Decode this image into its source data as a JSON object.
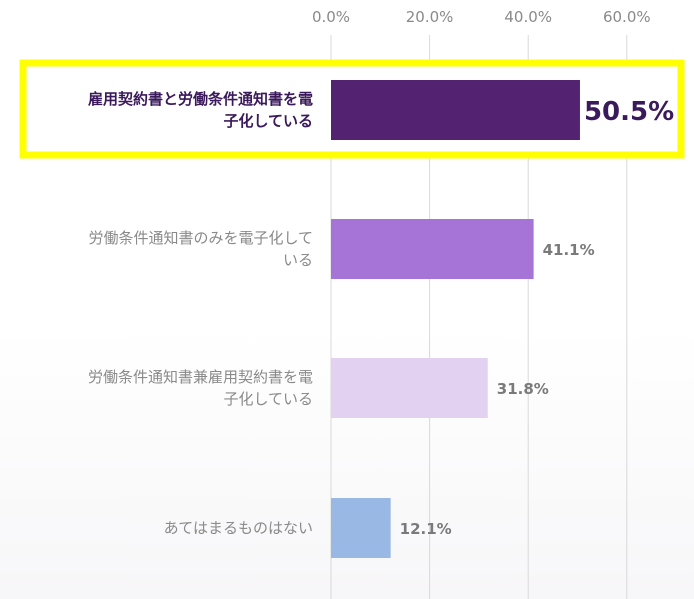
{
  "chart_data": {
    "type": "bar",
    "orientation": "horizontal",
    "categories": [
      [
        "雇用契約書と労働条件通知書を電",
        "子化している"
      ],
      [
        "労働条件通知書のみを電子化して",
        "いる"
      ],
      [
        "労働条件通知書兼雇用契約書を電",
        "子化している"
      ],
      [
        "あてはまるものはない"
      ]
    ],
    "values": [
      50.5,
      41.1,
      31.8,
      12.1
    ],
    "value_labels": [
      "50.5%",
      "41.1%",
      "31.8%",
      "12.1%"
    ],
    "colors": [
      "#532372",
      "#a674d7",
      "#e3d1f1",
      "#99b8e3"
    ],
    "xlim": [
      0,
      60
    ],
    "xticks": [
      "0.0%",
      "20.0%",
      "40.0%",
      "60.0%"
    ],
    "xtick_values": [
      0,
      20,
      40,
      60
    ],
    "grid": true,
    "highlighted_index": 0,
    "highlight_color": "#ffff00",
    "title": "",
    "xlabel": "",
    "ylabel": ""
  }
}
